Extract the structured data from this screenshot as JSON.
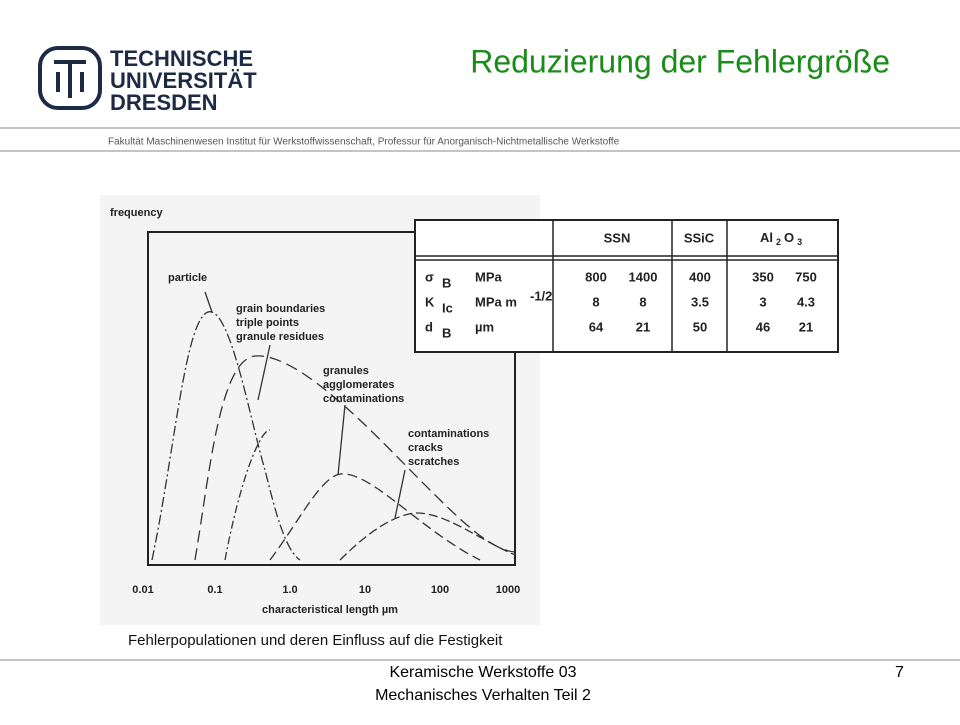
{
  "header": {
    "logo": [
      "TECHNISCHE",
      "UNIVERSITÄT",
      "DRESDEN"
    ],
    "title": "Reduzierung der Fehlergröße",
    "subtitle": "Fakultät Maschinenwesen Institut für Werkstoffwissenschaft, Professur für Anorganisch-Nichtmetallische Werkstoffe"
  },
  "figure": {
    "ylabel": "frequency",
    "xlabel": "characteristical length µm",
    "xticks": [
      "0.01",
      "0.1",
      "1.0",
      "10",
      "100",
      "1000"
    ],
    "curve_labels": [
      [
        "particle"
      ],
      [
        "grain boundaries",
        "triple points",
        "granule residues"
      ],
      [
        "granules",
        "agglomerates",
        "contaminations"
      ],
      [
        "contaminations",
        "cracks",
        "scratches"
      ]
    ]
  },
  "table": {
    "header": [
      "SSN",
      "SSiC",
      {
        "parts": [
          "Al",
          "2",
          "O",
          "3"
        ]
      }
    ],
    "rows": [
      {
        "symbol": "σ",
        "sub": "B",
        "unit": "MPa",
        "values": [
          "800",
          "1400",
          "400",
          "350",
          "750"
        ]
      },
      {
        "symbol": "K",
        "sub": "Ic",
        "unit": "MPa m",
        "unit_sup": "-1/2",
        "values": [
          "8",
          "8",
          "3.5",
          "3",
          "4.3"
        ]
      },
      {
        "symbol": "d",
        "sub": "B",
        "unit": "µm",
        "values": [
          "64",
          "21",
          "50",
          "46",
          "21"
        ]
      }
    ]
  },
  "caption": "Fehlerpopulationen und deren Einfluss auf die Festigkeit",
  "footer": {
    "lines": [
      "Keramische Werkstoffe 03",
      "Mechanisches Verhalten Teil 2"
    ],
    "page": "7"
  }
}
